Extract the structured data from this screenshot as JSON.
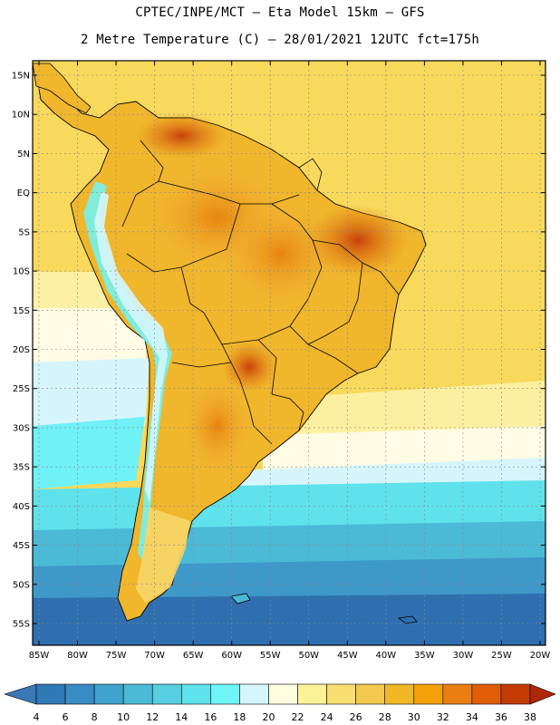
{
  "header": {
    "line1": "CPTEC/INPE/MCT –  Eta Model 15km – GFS",
    "line2": "2 Metre Temperature (C) – 28/01/2021 12UTC fct=175h"
  },
  "map": {
    "lat_labels": [
      "15N",
      "10N",
      "5N",
      "EQ",
      "5S",
      "10S",
      "15S",
      "20S",
      "25S",
      "30S",
      "35S",
      "40S",
      "45S",
      "50S",
      "55S"
    ],
    "lon_labels": [
      "85W",
      "80W",
      "75W",
      "70W",
      "65W",
      "60W",
      "55W",
      "50W",
      "45W",
      "40W",
      "35W",
      "30W",
      "25W",
      "20W"
    ],
    "lat_values": [
      15,
      10,
      5,
      0,
      -5,
      -10,
      -15,
      -20,
      -25,
      -30,
      -35,
      -40,
      -45,
      -50,
      -55
    ],
    "lon_values": [
      -85,
      -80,
      -75,
      -70,
      -65,
      -60,
      -55,
      -50,
      -45,
      -40,
      -35,
      -30,
      -25,
      -20
    ],
    "gridlines": true
  },
  "colorbar": {
    "labels": [
      "4",
      "6",
      "8",
      "10",
      "12",
      "14",
      "16",
      "18",
      "20",
      "22",
      "24",
      "26",
      "28",
      "30",
      "32",
      "34",
      "36",
      "38"
    ],
    "colors": [
      "#3a78b8",
      "#2f79b5",
      "#3a8cc4",
      "#40a3cc",
      "#4bbad6",
      "#56cfe0",
      "#5fe2ec",
      "#6ff5f8",
      "#d4f6fc",
      "#fffce0",
      "#fcf398",
      "#f8df70",
      "#f2c94e",
      "#f0b828",
      "#f4a008",
      "#ea7e12",
      "#e05e08",
      "#c23c04",
      "#b0260a"
    ]
  }
}
